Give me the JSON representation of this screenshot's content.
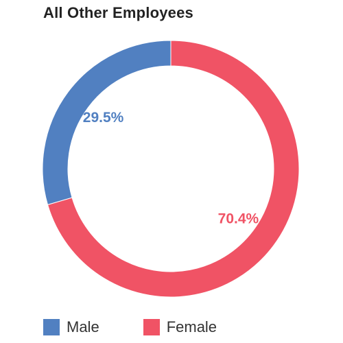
{
  "chart_data": {
    "type": "pie",
    "title": "All Other Employees",
    "categories": [
      "Male",
      "Female"
    ],
    "values": [
      29.5,
      70.4
    ],
    "data_labels": [
      "29.5%",
      "70.4%"
    ],
    "colors": [
      "#5180c1",
      "#f05365"
    ],
    "donut": true,
    "legend_position": "bottom-left"
  }
}
